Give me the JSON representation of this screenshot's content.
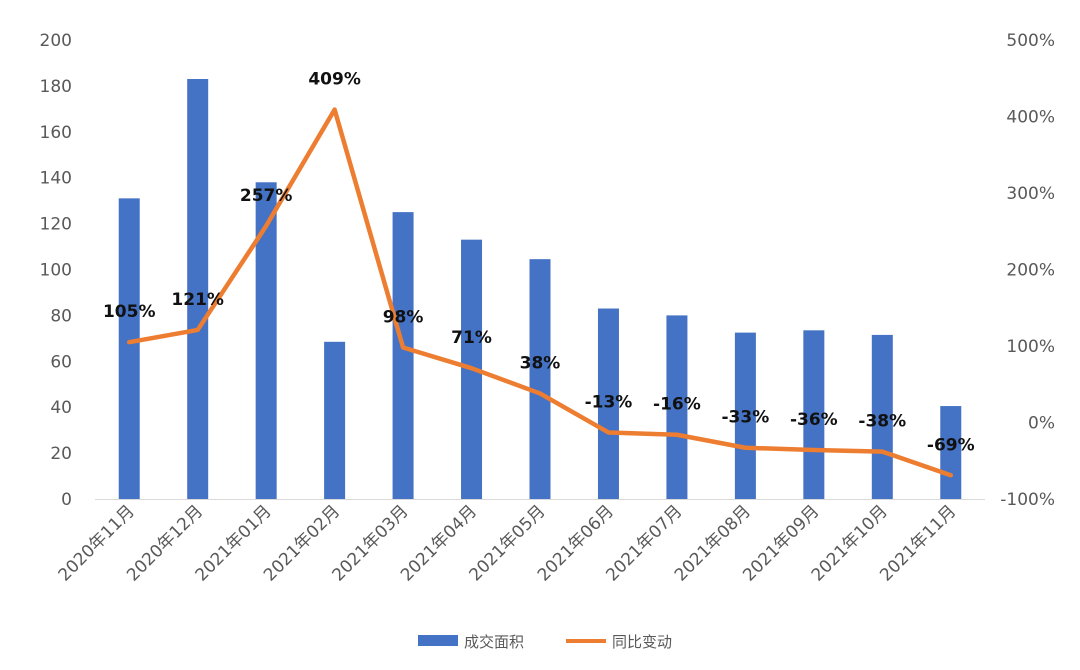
{
  "chart_data": {
    "type": "bar+line",
    "categories": [
      "2020年11月",
      "2020年12月",
      "2021年01月",
      "2021年02月",
      "2021年03月",
      "2021年04月",
      "2021年05月",
      "2021年06月",
      "2021年07月",
      "2021年08月",
      "2021年09月",
      "2021年10月",
      "2021年11月"
    ],
    "series": [
      {
        "name": "成交面积",
        "type": "bar",
        "axis": "left",
        "color": "#4472C4",
        "values": [
          131,
          183,
          138,
          68.5,
          125,
          113,
          104.5,
          83,
          80,
          72.5,
          73.5,
          71.5,
          40.5
        ]
      },
      {
        "name": "同比变动",
        "type": "line",
        "axis": "right",
        "color": "#ED7D31",
        "values": [
          105,
          121,
          257,
          409,
          98,
          71,
          38,
          -13,
          -16,
          -33,
          -36,
          -38,
          -69
        ],
        "labels": [
          "105%",
          "121%",
          "257%",
          "409%",
          "98%",
          "71%",
          "38%",
          "-13%",
          "-16%",
          "-33%",
          "-36%",
          "-38%",
          "-69%"
        ]
      }
    ],
    "y_left": {
      "range": [
        0,
        200
      ],
      "ticks": [
        "0",
        "20",
        "40",
        "60",
        "80",
        "100",
        "120",
        "140",
        "160",
        "180",
        "200"
      ]
    },
    "y_right": {
      "range": [
        -100,
        500
      ],
      "ticks": [
        "-100%",
        "0%",
        "100%",
        "200%",
        "300%",
        "400%",
        "500%"
      ]
    },
    "grid": false,
    "legend": "bottom-center"
  }
}
